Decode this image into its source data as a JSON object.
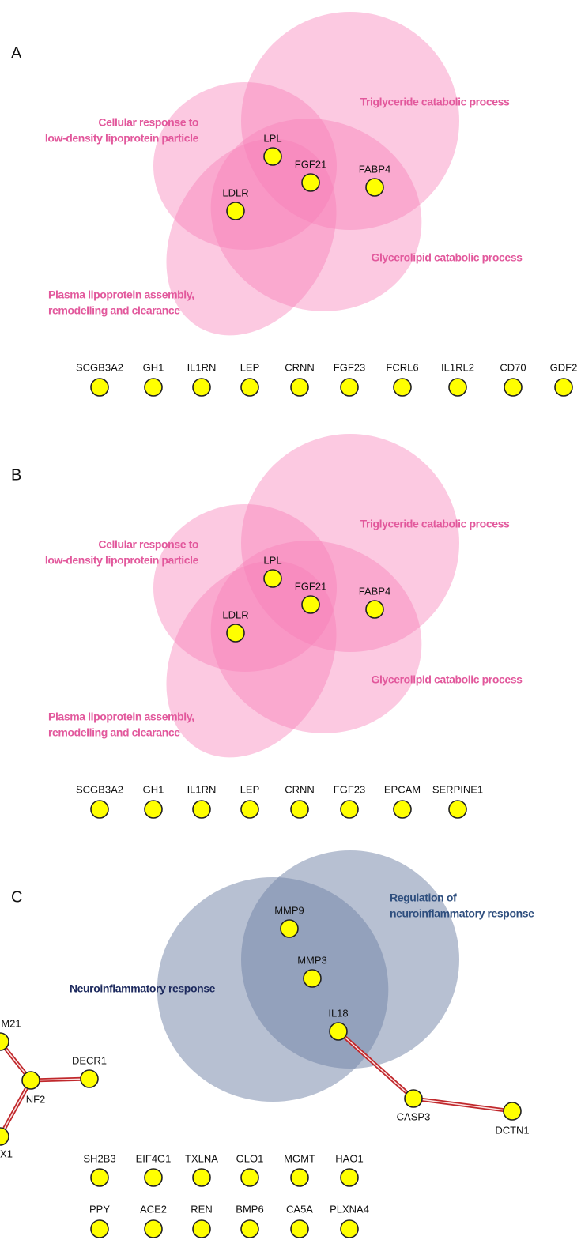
{
  "panels": [
    {
      "label": "A",
      "sets": [
        [
          "Triglyceride catabolic process"
        ],
        [
          "Cellular response to",
          "low-density lipoprotein particle"
        ],
        [
          "Glycerolipid catabolic process"
        ],
        [
          "Plasma lipoprotein assembly,",
          "remodelling and clearance"
        ]
      ],
      "genes": [
        "LPL",
        "FGF21",
        "FABP4",
        "LDLR"
      ],
      "unconnected": [
        "SCGB3A2",
        "GH1",
        "IL1RN",
        "LEP",
        "CRNN",
        "FGF23",
        "FCRL6",
        "IL1RL2",
        "CD70",
        "GDF2"
      ]
    },
    {
      "label": "B",
      "sets": [
        [
          "Triglyceride catabolic process"
        ],
        [
          "Cellular response to",
          "low-density lipoprotein particle"
        ],
        [
          "Glycerolipid catabolic process"
        ],
        [
          "Plasma lipoprotein assembly,",
          "remodelling and clearance"
        ]
      ],
      "genes": [
        "LPL",
        "FGF21",
        "FABP4",
        "LDLR"
      ],
      "unconnected": [
        "SCGB3A2",
        "GH1",
        "IL1RN",
        "LEP",
        "CRNN",
        "FGF23",
        "EPCAM",
        "SERPINE1"
      ]
    },
    {
      "label": "C",
      "sets": [
        [
          "Regulation of",
          "neuroinflammatory response"
        ],
        [
          "Neuroinflammatory response"
        ]
      ],
      "genes": [
        "MMP9",
        "MMP3",
        "IL18",
        "CASP3",
        "DCTN1",
        "M21",
        "NF2",
        "DECR1",
        "X1"
      ],
      "unconnected": [
        "SH2B3",
        "EIF4G1",
        "TXLNA",
        "GLO1",
        "MGMT",
        "HAO1",
        "PPY",
        "ACE2",
        "REN",
        "BMP6",
        "CA5A",
        "PLXNA4"
      ]
    }
  ]
}
